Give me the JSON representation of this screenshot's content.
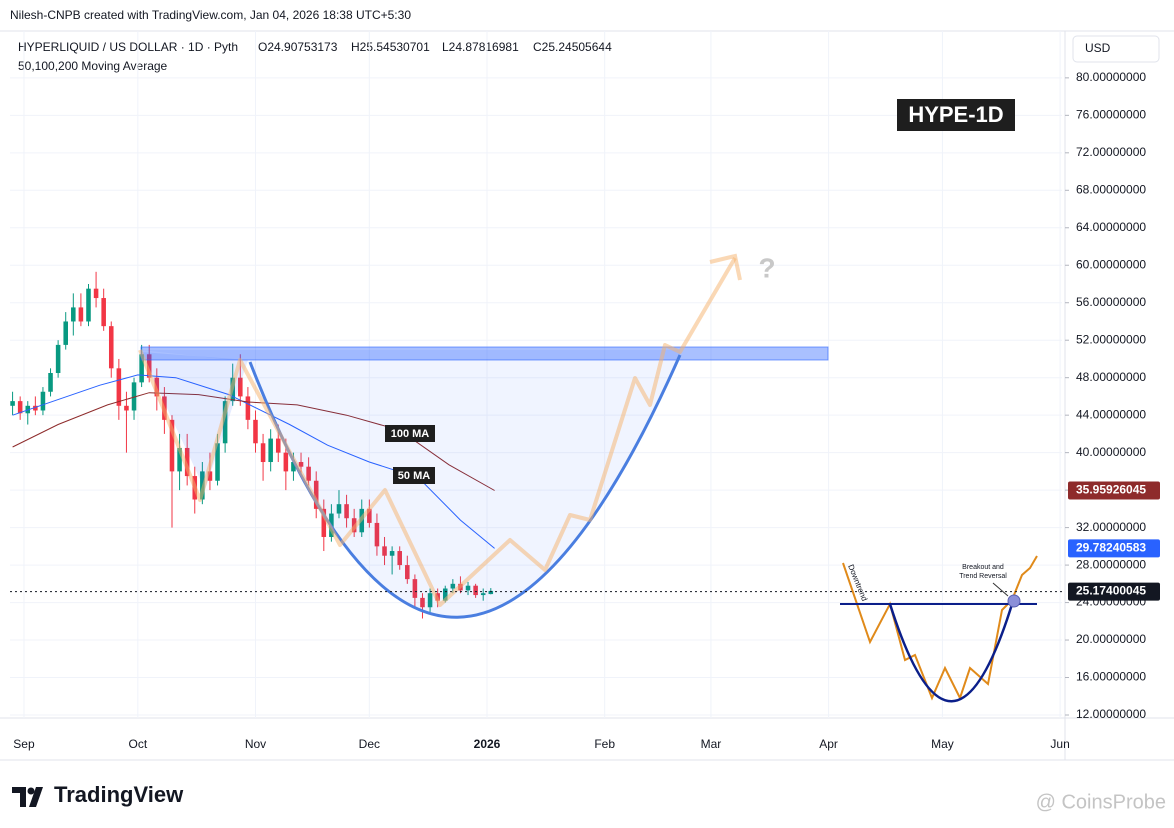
{
  "header": {
    "credit": "Nilesh-CNPB created with TradingView.com, Jan 04, 2026 18:38 UTC+5:30"
  },
  "chart_data": {
    "type": "candlestick",
    "title": "HYPERLIQUID / US DOLLAR · 1D · Pyth",
    "ohlc_legend": [
      "O24.90753173",
      "H25.54530701",
      "L24.87816981",
      "C25.24505644"
    ],
    "subtitle": "50,100,200 Moving Average",
    "currency": "USD",
    "up_color": "#089981",
    "down_color": "#f23645",
    "x": [
      -3,
      -1,
      1,
      3,
      5,
      7,
      9,
      11,
      13,
      15,
      17,
      19,
      21,
      23,
      25,
      27,
      29,
      31,
      33,
      35,
      37,
      39,
      41,
      43,
      45,
      47,
      49,
      51,
      53,
      55,
      57,
      59,
      61,
      63,
      65,
      67,
      69,
      71,
      73,
      75,
      77,
      79,
      81,
      83,
      85,
      87,
      89,
      91,
      93,
      95,
      97,
      99,
      101,
      103,
      105,
      107,
      109,
      111,
      113,
      115,
      117,
      119,
      121,
      123
    ],
    "ohlc": [
      [
        45,
        46.5,
        44,
        45.5
      ],
      [
        45.5,
        46,
        43.5,
        44.2
      ],
      [
        44.2,
        45.5,
        43,
        45
      ],
      [
        45,
        46,
        44,
        44.5
      ],
      [
        44.5,
        47,
        44,
        46.5
      ],
      [
        46.5,
        49,
        46,
        48.5
      ],
      [
        48.5,
        52,
        48,
        51.5
      ],
      [
        51.5,
        55,
        51,
        54
      ],
      [
        54,
        57,
        52.5,
        55.5
      ],
      [
        55.5,
        57,
        53.5,
        54
      ],
      [
        54,
        58,
        53.5,
        57.5
      ],
      [
        57.5,
        59.3,
        55.5,
        56.5
      ],
      [
        56.5,
        57.5,
        53,
        53.5
      ],
      [
        53.5,
        54,
        48,
        49
      ],
      [
        49,
        50,
        43.5,
        45
      ],
      [
        45,
        46.5,
        40,
        44.5
      ],
      [
        44.5,
        48,
        43.5,
        47.5
      ],
      [
        47.5,
        51.5,
        47,
        50.5
      ],
      [
        50.5,
        51.5,
        47.5,
        48
      ],
      [
        48,
        49,
        44.5,
        46
      ],
      [
        46,
        47,
        42,
        43.5
      ],
      [
        43.5,
        44,
        32,
        38
      ],
      [
        38,
        42,
        36,
        40.5
      ],
      [
        40.5,
        42,
        36.5,
        37.5
      ],
      [
        37.5,
        38.5,
        33.5,
        35
      ],
      [
        35,
        39,
        34.5,
        38
      ],
      [
        38,
        40,
        36,
        37
      ],
      [
        37,
        42,
        36.5,
        41
      ],
      [
        41,
        46,
        40,
        45.5
      ],
      [
        45.5,
        49.5,
        45,
        48
      ],
      [
        48,
        50.5,
        45,
        46
      ],
      [
        46,
        47,
        42.5,
        43.5
      ],
      [
        43.5,
        44.5,
        40,
        41
      ],
      [
        41,
        42,
        37,
        39
      ],
      [
        39,
        42.5,
        38,
        41.5
      ],
      [
        41.5,
        43,
        39,
        40
      ],
      [
        40,
        41.5,
        36,
        38
      ],
      [
        38,
        40,
        37,
        39
      ],
      [
        39,
        40,
        37.5,
        38.5
      ],
      [
        38.5,
        39.5,
        36.5,
        37
      ],
      [
        37,
        38,
        33,
        34
      ],
      [
        34,
        35,
        29.5,
        31
      ],
      [
        31,
        34.5,
        30.5,
        33.5
      ],
      [
        33.5,
        36,
        33,
        34.5
      ],
      [
        34.5,
        35.5,
        32,
        33
      ],
      [
        33,
        34,
        31,
        31.5
      ],
      [
        31.5,
        35,
        31,
        34
      ],
      [
        34,
        35,
        32,
        32.5
      ],
      [
        32.5,
        33.5,
        29,
        30
      ],
      [
        30,
        31,
        28,
        29
      ],
      [
        29,
        30,
        27,
        29.5
      ],
      [
        29.5,
        30,
        27.5,
        28
      ],
      [
        28,
        29,
        26,
        26.5
      ],
      [
        26.5,
        27,
        23.5,
        24.5
      ],
      [
        24.5,
        25,
        22.3,
        23.5
      ],
      [
        23.5,
        25.5,
        23,
        25
      ],
      [
        25,
        25.5,
        23.5,
        24.2
      ],
      [
        24.2,
        25.8,
        24,
        25.5
      ],
      [
        25.5,
        26.5,
        25,
        26
      ],
      [
        26,
        26.8,
        25,
        25.3
      ],
      [
        25.3,
        26.2,
        24.8,
        25.8
      ],
      [
        25.8,
        26,
        24.5,
        24.8
      ],
      [
        24.8,
        25.5,
        24.2,
        25
      ],
      [
        24.90753173,
        25.54530701,
        24.87816981,
        25.24505644
      ]
    ],
    "series": [
      {
        "name": "50 MA",
        "color": "#2962ff",
        "x": [
          -3,
          20,
          30,
          40,
          54,
          70,
          80,
          91,
          104,
          115,
          124
        ],
        "values": [
          44,
          47.2,
          48.3,
          48,
          46.2,
          43,
          40.8,
          39,
          37.3,
          32.8,
          29.78240583
        ],
        "last_label": "29.78240583"
      },
      {
        "name": "100 MA",
        "color": "#8e2b2b",
        "x": [
          -3,
          9,
          22,
          33,
          46,
          59,
          72,
          85,
          99,
          112,
          124
        ],
        "values": [
          40.6,
          43,
          45.1,
          46.4,
          46.2,
          45.4,
          45.1,
          44,
          42.4,
          38.7,
          35.95926045
        ],
        "last_label": "35.95926045"
      }
    ],
    "last_price": {
      "value": 25.17400045,
      "label": "25.17400045"
    },
    "xlim": [
      -3.68,
      273.5
    ],
    "xticks": [
      {
        "value": 0,
        "label": "Sep"
      },
      {
        "value": 30,
        "label": "Oct"
      },
      {
        "value": 61,
        "label": "Nov"
      },
      {
        "value": 91,
        "label": "Dec"
      },
      {
        "value": 122,
        "label": "2026"
      },
      {
        "value": 153,
        "label": "Feb"
      },
      {
        "value": 181,
        "label": "Mar"
      },
      {
        "value": 212,
        "label": "Apr"
      },
      {
        "value": 242,
        "label": "May"
      },
      {
        "value": 273,
        "label": "Jun"
      }
    ],
    "ylim": [
      11.68,
      84.04
    ],
    "yticks": [
      {
        "value": 12,
        "label": "12.00000000"
      },
      {
        "value": 16,
        "label": "16.00000000"
      },
      {
        "value": 20,
        "label": "20.00000000"
      },
      {
        "value": 24,
        "label": "24.00000000"
      },
      {
        "value": 28,
        "label": "28.00000000"
      },
      {
        "value": 32,
        "label": "32.00000000"
      },
      {
        "value": 36,
        "label": "36.00000000"
      },
      {
        "value": 40,
        "label": "40.00000000"
      },
      {
        "value": 44,
        "label": "44.00000000"
      },
      {
        "value": 48,
        "label": "48.00000000"
      },
      {
        "value": 52,
        "label": "52.00000000"
      },
      {
        "value": 56,
        "label": "56.00000000"
      },
      {
        "value": 60,
        "label": "60.00000000"
      },
      {
        "value": 64,
        "label": "64.00000000"
      },
      {
        "value": 68,
        "label": "68.00000000"
      },
      {
        "value": 72,
        "label": "72.00000000"
      },
      {
        "value": 76,
        "label": "76.00000000"
      },
      {
        "value": 80,
        "label": "80.00000000"
      }
    ],
    "annotations": [
      "HYPE-1D",
      "?"
    ]
  },
  "inset": {
    "downtrend": "Downtrend",
    "breakout": [
      "Breakout and",
      "Trend Reversal"
    ]
  },
  "footer": {
    "logo": "TradingView",
    "watermark": "@ CoinsProbe"
  }
}
